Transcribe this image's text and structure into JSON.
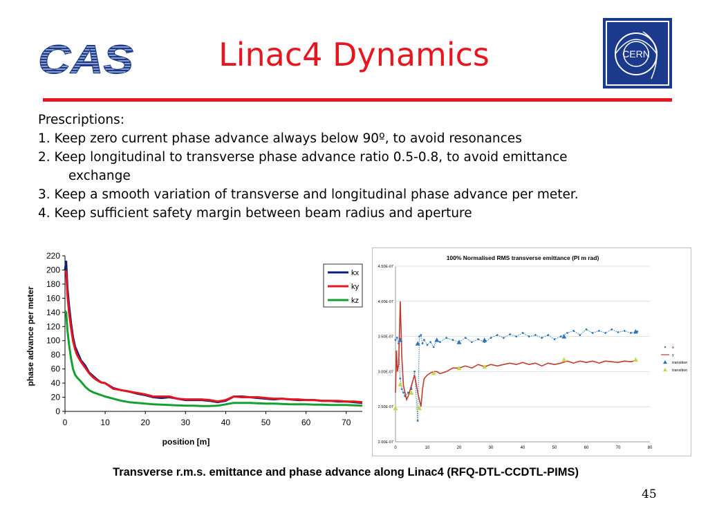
{
  "slide": {
    "title": "Linac4 Dynamics",
    "cas_logo_text": "CAS",
    "cern_logo_text": "CERN",
    "accent_color": "#e8141e",
    "cern_blue": "#1b3a8c",
    "caption": "Transverse r.m.s. emittance and phase advance along Linac4 (RFQ-DTL-CCDTL-PIMS)",
    "page_number": "45"
  },
  "body": {
    "heading": "Prescriptions:",
    "item1": "1. Keep zero current phase advance always below 90º, to avoid resonances",
    "item2a": "2. Keep longitudinal to transverse phase advance ratio 0.5-0.8, to avoid emittance",
    "item2b": "exchange",
    "item3": "3. Keep a smooth variation of transverse and longitudinal phase advance per meter.",
    "item4": "4. Keep sufficient safety margin between beam radius and aperture"
  },
  "chart_data": [
    {
      "type": "line",
      "title": "",
      "xlabel": "position [m]",
      "ylabel": "phase advance per meter",
      "xlim": [
        0,
        74
      ],
      "ylim": [
        0,
        220
      ],
      "xticks": [
        "0",
        "10",
        "20",
        "30",
        "40",
        "50",
        "60",
        "70"
      ],
      "yticks": [
        "0",
        "20",
        "40",
        "60",
        "80",
        "100",
        "120",
        "140",
        "160",
        "180",
        "200",
        "220"
      ],
      "legend": "top-right",
      "series": [
        {
          "name": "kx",
          "color": "#0a1f7a",
          "x": [
            0,
            0.3,
            0.6,
            1,
            1.5,
            2,
            2.5,
            3,
            4,
            5,
            6,
            7,
            8,
            9,
            10,
            12,
            14,
            16,
            18,
            20,
            22,
            24,
            26,
            28,
            30,
            32,
            34,
            36,
            38,
            40,
            42,
            44,
            46,
            48,
            50,
            52,
            54,
            56,
            58,
            60,
            62,
            64,
            66,
            68,
            70,
            72,
            74
          ],
          "values": [
            200,
            212,
            175,
            150,
            125,
            105,
            92,
            85,
            72,
            65,
            55,
            50,
            45,
            41,
            40,
            33,
            30,
            28,
            25,
            23,
            20,
            19,
            20,
            18,
            16,
            16,
            16,
            15,
            13,
            15,
            21,
            21,
            20,
            19,
            18,
            17,
            18,
            17,
            16,
            16,
            16,
            15,
            15,
            14,
            14,
            13,
            12
          ]
        },
        {
          "name": "ky",
          "color": "#e8141e",
          "x": [
            0,
            0.3,
            0.6,
            1,
            1.5,
            2,
            2.5,
            3,
            4,
            5,
            6,
            7,
            8,
            9,
            10,
            12,
            14,
            16,
            18,
            20,
            22,
            24,
            26,
            28,
            30,
            32,
            34,
            36,
            38,
            40,
            42,
            44,
            46,
            48,
            50,
            52,
            54,
            56,
            58,
            60,
            62,
            64,
            66,
            68,
            70,
            72,
            74
          ],
          "values": [
            195,
            198,
            165,
            140,
            118,
            100,
            88,
            80,
            70,
            62,
            54,
            48,
            44,
            41,
            40,
            32,
            30,
            28,
            26,
            24,
            21,
            21,
            21,
            18,
            17,
            17,
            17,
            16,
            14,
            16,
            21,
            20,
            20,
            20,
            19,
            18,
            18,
            17,
            17,
            16,
            16,
            15,
            15,
            15,
            14,
            14,
            13
          ]
        },
        {
          "name": "kz",
          "color": "#13a031",
          "x": [
            0,
            0.3,
            0.6,
            1,
            1.5,
            2,
            2.5,
            3,
            4,
            5,
            6,
            7,
            8,
            9,
            10,
            12,
            14,
            16,
            18,
            20,
            22,
            24,
            26,
            28,
            30,
            32,
            34,
            36,
            38,
            40,
            42,
            44,
            46,
            48,
            50,
            52,
            54,
            56,
            58,
            60,
            62,
            64,
            66,
            68,
            70,
            72,
            74
          ],
          "values": [
            142,
            140,
            115,
            95,
            75,
            60,
            52,
            48,
            42,
            35,
            30,
            27,
            25,
            23,
            21,
            18,
            15,
            13,
            12,
            11,
            10,
            9.5,
            9,
            8.5,
            8,
            8,
            7.5,
            7.5,
            8,
            10,
            12,
            12,
            12,
            11.5,
            11,
            11,
            10.5,
            10,
            10,
            10,
            9.5,
            9.5,
            9,
            9,
            9,
            8.5,
            8
          ]
        }
      ]
    },
    {
      "type": "scatter",
      "title": "100% Normalised RMS transverse emittance (PI m rad)",
      "xlabel": "",
      "ylabel": "",
      "xlim": [
        0,
        80
      ],
      "ylim": [
        2e-07,
        4.5e-07
      ],
      "xticks": [
        "0",
        "10",
        "20",
        "30",
        "40",
        "50",
        "60",
        "70",
        "80"
      ],
      "yticks": [
        "2.00E-07",
        "2.50E-07",
        "3.00E-07",
        "3.50E-07",
        "4.00E-07",
        "4.50E-07"
      ],
      "legend": "right",
      "series": [
        {
          "name": "x",
          "color": "#2e75b6",
          "x": [
            0,
            0.5,
            1,
            1.5,
            2,
            2.5,
            3,
            4,
            5,
            6,
            7,
            7.5,
            8,
            8.5,
            9,
            10,
            11,
            12,
            13,
            14,
            16,
            18,
            20,
            22,
            24,
            26,
            28,
            30,
            32,
            34,
            36,
            38,
            40,
            42,
            44,
            46,
            48,
            50,
            52,
            54,
            56,
            58,
            60,
            62,
            64,
            66,
            68,
            70,
            72,
            74,
            76
          ],
          "values": [
            3.45e-07,
            3.48e-07,
            3.4e-07,
            2.9e-07,
            2.75e-07,
            2.7e-07,
            2.65e-07,
            2.7e-07,
            2.75e-07,
            3e-07,
            2.3e-07,
            3.5e-07,
            3.52e-07,
            3.4e-07,
            3.45e-07,
            3.38e-07,
            3.42e-07,
            3.35e-07,
            3.45e-07,
            3.42e-07,
            3.48e-07,
            3.45e-07,
            3.42e-07,
            3.48e-07,
            3.42e-07,
            3.46e-07,
            3.42e-07,
            3.48e-07,
            3.52e-07,
            3.48e-07,
            3.53e-07,
            3.5e-07,
            3.55e-07,
            3.5e-07,
            3.52e-07,
            3.48e-07,
            3.52e-07,
            3.46e-07,
            3.5e-07,
            3.55e-07,
            3.58e-07,
            3.52e-07,
            3.6e-07,
            3.55e-07,
            3.58e-07,
            3.55e-07,
            3.6e-07,
            3.56e-07,
            3.58e-07,
            3.55e-07,
            3.57e-07
          ]
        },
        {
          "name": "y",
          "color": "#c0392b",
          "x": [
            0,
            0.3,
            0.6,
            1,
            1.5,
            2,
            2.5,
            3,
            3.5,
            4,
            5,
            6,
            7,
            7.5,
            8,
            8.5,
            9,
            10,
            11,
            12,
            13,
            14,
            16,
            18,
            20,
            22,
            24,
            26,
            28,
            30,
            32,
            34,
            36,
            38,
            40,
            42,
            44,
            46,
            48,
            50,
            52,
            54,
            56,
            58,
            60,
            62,
            64,
            66,
            68,
            70,
            72,
            74,
            76
          ],
          "values": [
            2.7e-07,
            3.3e-07,
            3e-07,
            3.1e-07,
            4e-07,
            3.2e-07,
            2.8e-07,
            2.7e-07,
            2.6e-07,
            2.65e-07,
            2.8e-07,
            2.95e-07,
            2.7e-07,
            2.6e-07,
            2.5e-07,
            2.75e-07,
            2.9e-07,
            2.95e-07,
            2.98e-07,
            3e-07,
            3e-07,
            2.97e-07,
            3e-07,
            3.05e-07,
            3.05e-07,
            3.08e-07,
            3.05e-07,
            3.1e-07,
            3.07e-07,
            3.1e-07,
            3.08e-07,
            3.1e-07,
            3.12e-07,
            3.1e-07,
            3.13e-07,
            3.1e-07,
            3.12e-07,
            3.08e-07,
            3.12e-07,
            3.1e-07,
            3.12e-07,
            3.15e-07,
            3.12e-07,
            3.15e-07,
            3.13e-07,
            3.15e-07,
            3.12e-07,
            3.15e-07,
            3.14e-07,
            3.13e-07,
            3.15e-07,
            3.14e-07,
            3.16e-07
          ]
        },
        {
          "name": "transition",
          "color": "#2e75b6",
          "marker": "triangle",
          "x": [
            1.5,
            7,
            13,
            20,
            28,
            53,
            75.5
          ],
          "values": [
            3.45e-07,
            3.4e-07,
            3.45e-07,
            3.42e-07,
            3.45e-07,
            3.5e-07,
            3.57e-07
          ]
        },
        {
          "name": "transition",
          "color": "#c5d646",
          "marker": "triangle",
          "x": [
            0,
            1.5,
            5,
            7.5,
            12,
            20,
            28,
            53,
            75.5
          ],
          "values": [
            2.48e-07,
            2.82e-07,
            2.7e-07,
            2.48e-07,
            2.98e-07,
            3.05e-07,
            3.07e-07,
            3.17e-07,
            3.17e-07
          ]
        }
      ]
    }
  ]
}
